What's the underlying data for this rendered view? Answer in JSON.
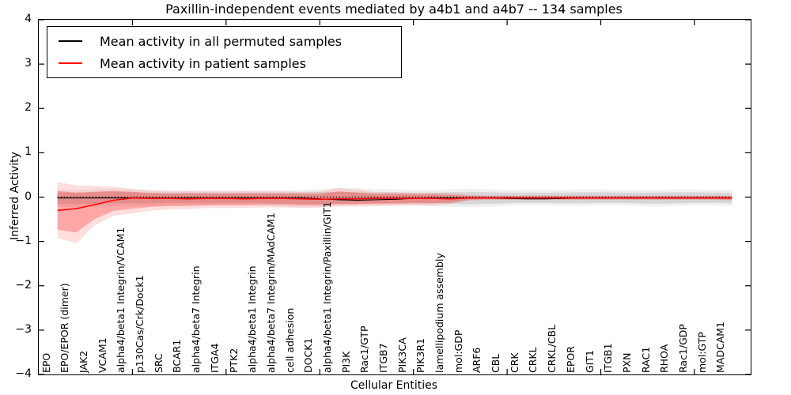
{
  "figure": {
    "title": "Paxillin-independent events mediated by a4b1 and a4b7 -- 134 samples",
    "xlabel": "Cellular Entities",
    "ylabel": "Inferred Activity"
  },
  "chart_data": {
    "type": "line",
    "title": "Paxillin-independent events mediated by a4b1 and a4b7 -- 134 samples",
    "xlabel": "Cellular Entities",
    "ylabel": "Inferred Activity",
    "ylim": [
      -4,
      4
    ],
    "yticks": [
      4,
      3,
      2,
      1,
      0,
      -1,
      -2,
      -3,
      -4
    ],
    "xticks": [
      5,
      10,
      15,
      20,
      25,
      30,
      35
    ],
    "grid": false,
    "legend_position": "upper left",
    "zero_line": {
      "style": "dotted",
      "value": 0,
      "color": "#000000"
    },
    "categories": [
      "EPO",
      "EPO/EPOR (dimer)",
      "JAK2",
      "VCAM1",
      "alpha4/beta1 Integrin/VCAM1",
      "p130Cas/Crk/Dock1",
      "SRC",
      "BCAR1",
      "alpha4/beta7 Integrin",
      "ITGA4",
      "PTK2",
      "alpha4/beta1 Integrin",
      "alpha4/beta7 Integrin/MAdCAM1",
      "cell adhesion",
      "DOCK1",
      "alpha4/beta1 Integrin/Paxillin/GIT1",
      "PI3K",
      "Rac1/GTP",
      "ITGB7",
      "PIK3CA",
      "PIK3R1",
      "lamellipodium assembly",
      "mol:GDP",
      "ARF6",
      "CBL",
      "CRK",
      "CRKL",
      "CRKL/CBL",
      "EPOR",
      "GIT1",
      "ITGB1",
      "PXN",
      "RAC1",
      "RHOA",
      "Rac1/GDP",
      "mol:GTP",
      "MADCAM1"
    ],
    "series": [
      {
        "name": "Mean activity in all permuted samples",
        "color": "#000000",
        "values": [
          -0.02,
          -0.02,
          -0.02,
          -0.02,
          -0.02,
          -0.02,
          -0.02,
          -0.02,
          -0.02,
          -0.02,
          -0.02,
          -0.02,
          -0.02,
          -0.02,
          -0.04,
          -0.06,
          -0.07,
          -0.06,
          -0.05,
          -0.03,
          -0.02,
          -0.02,
          -0.02,
          -0.02,
          -0.03,
          -0.04,
          -0.04,
          -0.03,
          -0.02,
          -0.02,
          -0.02,
          -0.02,
          -0.02,
          -0.02,
          -0.02,
          -0.02,
          -0.02
        ],
        "band_upper": [
          0.1,
          0.1,
          0.11,
          0.12,
          0.11,
          0.1,
          0.1,
          0.1,
          0.1,
          0.1,
          0.1,
          0.1,
          0.1,
          0.1,
          0.11,
          0.12,
          0.11,
          0.1,
          0.1,
          0.1,
          0.1,
          0.11,
          0.12,
          0.11,
          0.1,
          0.1,
          0.1,
          0.1,
          0.11,
          0.11,
          0.1,
          0.1,
          0.1,
          0.11,
          0.11,
          0.1,
          0.1
        ],
        "band_lower": [
          -0.15,
          -0.16,
          -0.15,
          -0.14,
          -0.14,
          -0.14,
          -0.13,
          -0.13,
          -0.14,
          -0.13,
          -0.13,
          -0.14,
          -0.15,
          -0.16,
          -0.16,
          -0.15,
          -0.14,
          -0.14,
          -0.13,
          -0.13,
          -0.14,
          -0.15,
          -0.16,
          -0.15,
          -0.14,
          -0.13,
          -0.13,
          -0.14,
          -0.14,
          -0.13,
          -0.13,
          -0.14,
          -0.15,
          -0.14,
          -0.13,
          -0.13,
          -0.14
        ]
      },
      {
        "name": "Mean activity in patient samples",
        "color": "#ff0000",
        "values": [
          -0.3,
          -0.26,
          -0.17,
          -0.07,
          -0.02,
          -0.03,
          -0.03,
          -0.04,
          -0.03,
          -0.03,
          -0.04,
          -0.03,
          -0.03,
          -0.04,
          -0.05,
          -0.04,
          -0.04,
          -0.03,
          -0.03,
          -0.03,
          -0.03,
          -0.04,
          -0.02,
          -0.02,
          -0.02,
          -0.02,
          -0.02,
          -0.02,
          -0.02,
          -0.02,
          -0.02,
          -0.02,
          -0.02,
          -0.02,
          -0.02,
          -0.02,
          -0.02
        ],
        "band_upper": [
          0.14,
          0.1,
          0.12,
          0.14,
          0.12,
          0.09,
          0.08,
          0.08,
          0.08,
          0.08,
          0.08,
          0.08,
          0.08,
          0.07,
          0.07,
          0.13,
          0.1,
          0.07,
          0.07,
          0.06,
          0.06,
          0.05,
          0.03,
          0.02,
          0.02,
          0.02,
          0.02,
          0.02,
          0.02,
          0.02,
          0.02,
          0.02,
          0.02,
          0.02,
          0.02,
          0.02,
          0.02
        ],
        "band_lower": [
          -0.73,
          -0.8,
          -0.49,
          -0.31,
          -0.26,
          -0.22,
          -0.2,
          -0.2,
          -0.18,
          -0.18,
          -0.18,
          -0.17,
          -0.17,
          -0.18,
          -0.18,
          -0.16,
          -0.16,
          -0.15,
          -0.15,
          -0.14,
          -0.14,
          -0.12,
          -0.06,
          -0.05,
          -0.05,
          -0.05,
          -0.05,
          -0.05,
          -0.05,
          -0.05,
          -0.05,
          -0.05,
          -0.05,
          -0.05,
          -0.05,
          -0.05,
          -0.06
        ]
      }
    ]
  }
}
